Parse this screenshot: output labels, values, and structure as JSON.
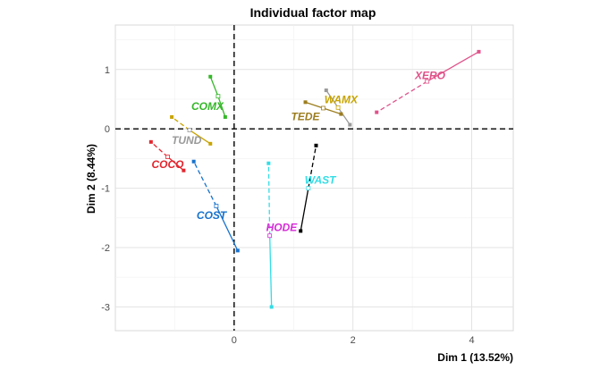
{
  "chart_data": {
    "type": "scatter",
    "title": "Individual factor map",
    "xlabel": "Dim 1 (13.52%)",
    "ylabel": "Dim 2 (8.44%)",
    "xlim": [
      -2,
      4.7
    ],
    "ylim": [
      -3.4,
      1.75
    ],
    "x_ticks": [
      0,
      2,
      4
    ],
    "y_ticks": [
      -3,
      -2,
      -1,
      0,
      1
    ],
    "x_tick_labels": [
      "0",
      "2",
      "4"
    ],
    "y_tick_labels": [
      "-3",
      "-2",
      "-1",
      "0",
      "1"
    ],
    "grid": true,
    "reference_lines": {
      "x": 0,
      "y": 0,
      "style": "dashed"
    },
    "series": [
      {
        "name": "XERO",
        "color": "#e0538a",
        "label_pos": [
          3.3,
          0.9
        ],
        "center": [
          3.25,
          0.8
        ],
        "points": [
          [
            4.12,
            1.3
          ],
          [
            2.4,
            0.28
          ]
        ]
      },
      {
        "name": "WAMX",
        "color": "#c8a400",
        "label_pos": [
          1.8,
          0.49
        ],
        "center": [
          1.75,
          0.36
        ],
        "points": [
          [
            1.55,
            0.65
          ],
          [
            1.95,
            0.07
          ]
        ]
      },
      {
        "name": "TEDE",
        "color": "#9c7d1e",
        "label_pos": [
          1.2,
          0.21
        ],
        "center": [
          1.5,
          0.35
        ],
        "points": [
          [
            1.2,
            0.45
          ],
          [
            1.8,
            0.25
          ]
        ]
      },
      {
        "name": "COMX",
        "color": "#35b729",
        "label_pos": [
          -0.45,
          0.38
        ],
        "center": [
          -0.27,
          0.55
        ],
        "points": [
          [
            -0.4,
            0.88
          ],
          [
            -0.15,
            0.2
          ]
        ]
      },
      {
        "name": "TUND",
        "color": "#999999",
        "label_pos": [
          -0.8,
          -0.19
        ],
        "center": [
          -0.75,
          -0.02
        ],
        "points": [
          [
            -1.05,
            0.2
          ],
          [
            -0.4,
            -0.25
          ]
        ]
      },
      {
        "name": "COCO",
        "color": "#e3262f",
        "label_pos": [
          -1.12,
          -0.6
        ],
        "center": [
          -1.12,
          -0.47
        ],
        "points": [
          [
            -1.4,
            -0.22
          ],
          [
            -0.85,
            -0.7
          ]
        ]
      },
      {
        "name": "COST",
        "color": "#1873cd",
        "label_pos": [
          -0.38,
          -1.46
        ],
        "center": [
          -0.3,
          -1.3
        ],
        "points": [
          [
            -0.68,
            -0.55
          ],
          [
            0.06,
            -2.05
          ]
        ]
      },
      {
        "name": "WAST",
        "color": "#32dde6",
        "label_pos": [
          1.45,
          -0.86
        ],
        "center": [
          1.25,
          -1.0
        ],
        "points": [
          [
            1.38,
            -0.28
          ],
          [
            1.12,
            -1.72
          ]
        ]
      },
      {
        "name": "HODE",
        "color": "#d52bd6",
        "label_pos": [
          0.8,
          -1.66
        ],
        "center": [
          0.6,
          -1.8
        ],
        "points": [
          [
            0.58,
            -0.58
          ],
          [
            0.63,
            -3.0
          ]
        ]
      }
    ],
    "segment_styles": {
      "XERO": [
        "solid",
        "dashed"
      ],
      "WAMX": [
        "solid",
        "solid"
      ],
      "TEDE": [
        "solid",
        "solid"
      ],
      "COMX": [
        "solid",
        "solid"
      ],
      "TUND": [
        "dashed",
        "solid"
      ],
      "COCO": [
        "dashed",
        "solid"
      ],
      "COST": [
        "dashed",
        "solid"
      ],
      "WAST": [
        "dashed",
        "solid"
      ],
      "HODE": [
        "dashed",
        "solid"
      ]
    },
    "segment_colors": {
      "WAST": [
        "#000000",
        "#000000"
      ],
      "HODE": [
        "#32dde6",
        "#32dde6"
      ],
      "WAMX": [
        "#999999",
        "#999999"
      ],
      "TUND": [
        "#c8a400",
        "#c8a400"
      ]
    }
  }
}
